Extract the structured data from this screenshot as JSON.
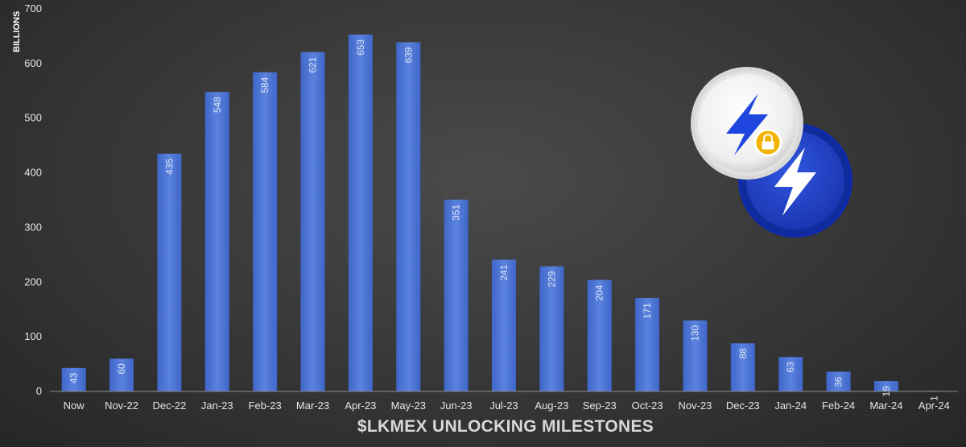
{
  "chart_data": {
    "type": "bar",
    "title": "",
    "xlabel": "$LKMEX UNLOCKING MILESTONES",
    "ylabel": "BILLIONS",
    "ylim": [
      0,
      700
    ],
    "yticks": [
      0,
      100,
      200,
      300,
      400,
      500,
      600,
      700
    ],
    "grid": false,
    "categories": [
      "Now",
      "Nov-22",
      "Dec-22",
      "Jan-23",
      "Feb-23",
      "Mar-23",
      "Apr-23",
      "May-23",
      "Jun-23",
      "Jul-23",
      "Aug-23",
      "Sep-23",
      "Oct-23",
      "Nov-23",
      "Dec-23",
      "Jan-24",
      "Feb-24",
      "Mar-24",
      "Apr-24"
    ],
    "values": [
      43,
      60,
      435,
      548,
      584,
      621,
      653,
      639,
      351,
      241,
      229,
      204,
      171,
      130,
      88,
      63,
      36,
      19,
      1
    ],
    "bar_color": "#4a72d4",
    "bar_color_light": "#6a8fe6"
  },
  "icons": {
    "locked_token": "lightning-lock-coin-icon",
    "token": "lightning-coin-icon"
  },
  "colors": {
    "white_coin": "#f2f2f2",
    "blue_coin": "#2344c8",
    "bolt_blue": "#1f47e0",
    "lock_gold": "#f2b400"
  }
}
